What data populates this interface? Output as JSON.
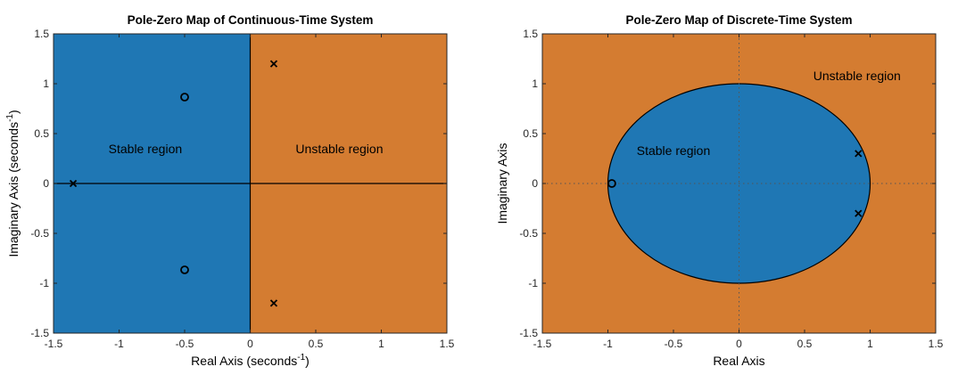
{
  "colors": {
    "stable": "#1f77b4",
    "unstable": "#d47c31",
    "axis": "#000000",
    "tick": "#262626"
  },
  "chart_data": [
    {
      "type": "scatter",
      "title": "Pole-Zero Map of Continuous-Time System",
      "xlabel": "Real Axis (seconds",
      "ylabel": "Imaginary Axis (seconds",
      "label_exponent": "-1",
      "label_suffix": ")",
      "xlim": [
        -1.5,
        1.5
      ],
      "ylim": [
        -1.5,
        1.5
      ],
      "xticks": [
        -1.5,
        -1,
        -0.5,
        0,
        0.5,
        1,
        1.5
      ],
      "xtick_labels": [
        "-1.5",
        "-1",
        "-0.5",
        "0",
        "0.5",
        "1",
        "1.5"
      ],
      "yticks": [
        -1.5,
        -1,
        -0.5,
        0,
        0.5,
        1,
        1.5
      ],
      "ytick_labels": [
        "-1.5",
        "-1",
        "-0.5",
        "0",
        "0.5",
        "1",
        "1.5"
      ],
      "grid": false,
      "stable_region": "left-half-plane",
      "regions": [
        {
          "text": "Stable region",
          "x": -0.8,
          "y": 0.35
        },
        {
          "text": "Unstable region",
          "x": 0.68,
          "y": 0.35
        }
      ],
      "poles": [
        {
          "x": -1.35,
          "y": 0
        },
        {
          "x": 0.18,
          "y": 1.2
        },
        {
          "x": 0.18,
          "y": -1.2
        }
      ],
      "zeros": [
        {
          "x": -0.5,
          "y": 0.866
        },
        {
          "x": -0.5,
          "y": -0.866
        }
      ]
    },
    {
      "type": "scatter",
      "title": "Pole-Zero Map of Discrete-Time System",
      "xlabel": "Real Axis",
      "ylabel": "Imaginary Axis",
      "xlim": [
        -1.5,
        1.5
      ],
      "ylim": [
        -1.5,
        1.5
      ],
      "xticks": [
        -1.5,
        -1,
        -0.5,
        0,
        0.5,
        1,
        1.5
      ],
      "xtick_labels": [
        "-1.5",
        "-1",
        "-0.5",
        "0",
        "0.5",
        "1",
        "1.5"
      ],
      "yticks": [
        -1.5,
        -1,
        -0.5,
        0,
        0.5,
        1,
        1.5
      ],
      "ytick_labels": [
        "-1.5",
        "-1",
        "-0.5",
        "0",
        "0.5",
        "1",
        "1.5"
      ],
      "grid": false,
      "stable_region": "unit-circle",
      "regions": [
        {
          "text": "Stable region",
          "x": -0.5,
          "y": 0.33
        },
        {
          "text": "Unstable region",
          "x": 0.9,
          "y": 1.08
        }
      ],
      "poles": [
        {
          "x": 0.91,
          "y": 0.3
        },
        {
          "x": 0.91,
          "y": -0.3
        }
      ],
      "zeros": [
        {
          "x": -0.97,
          "y": 0
        }
      ]
    }
  ]
}
